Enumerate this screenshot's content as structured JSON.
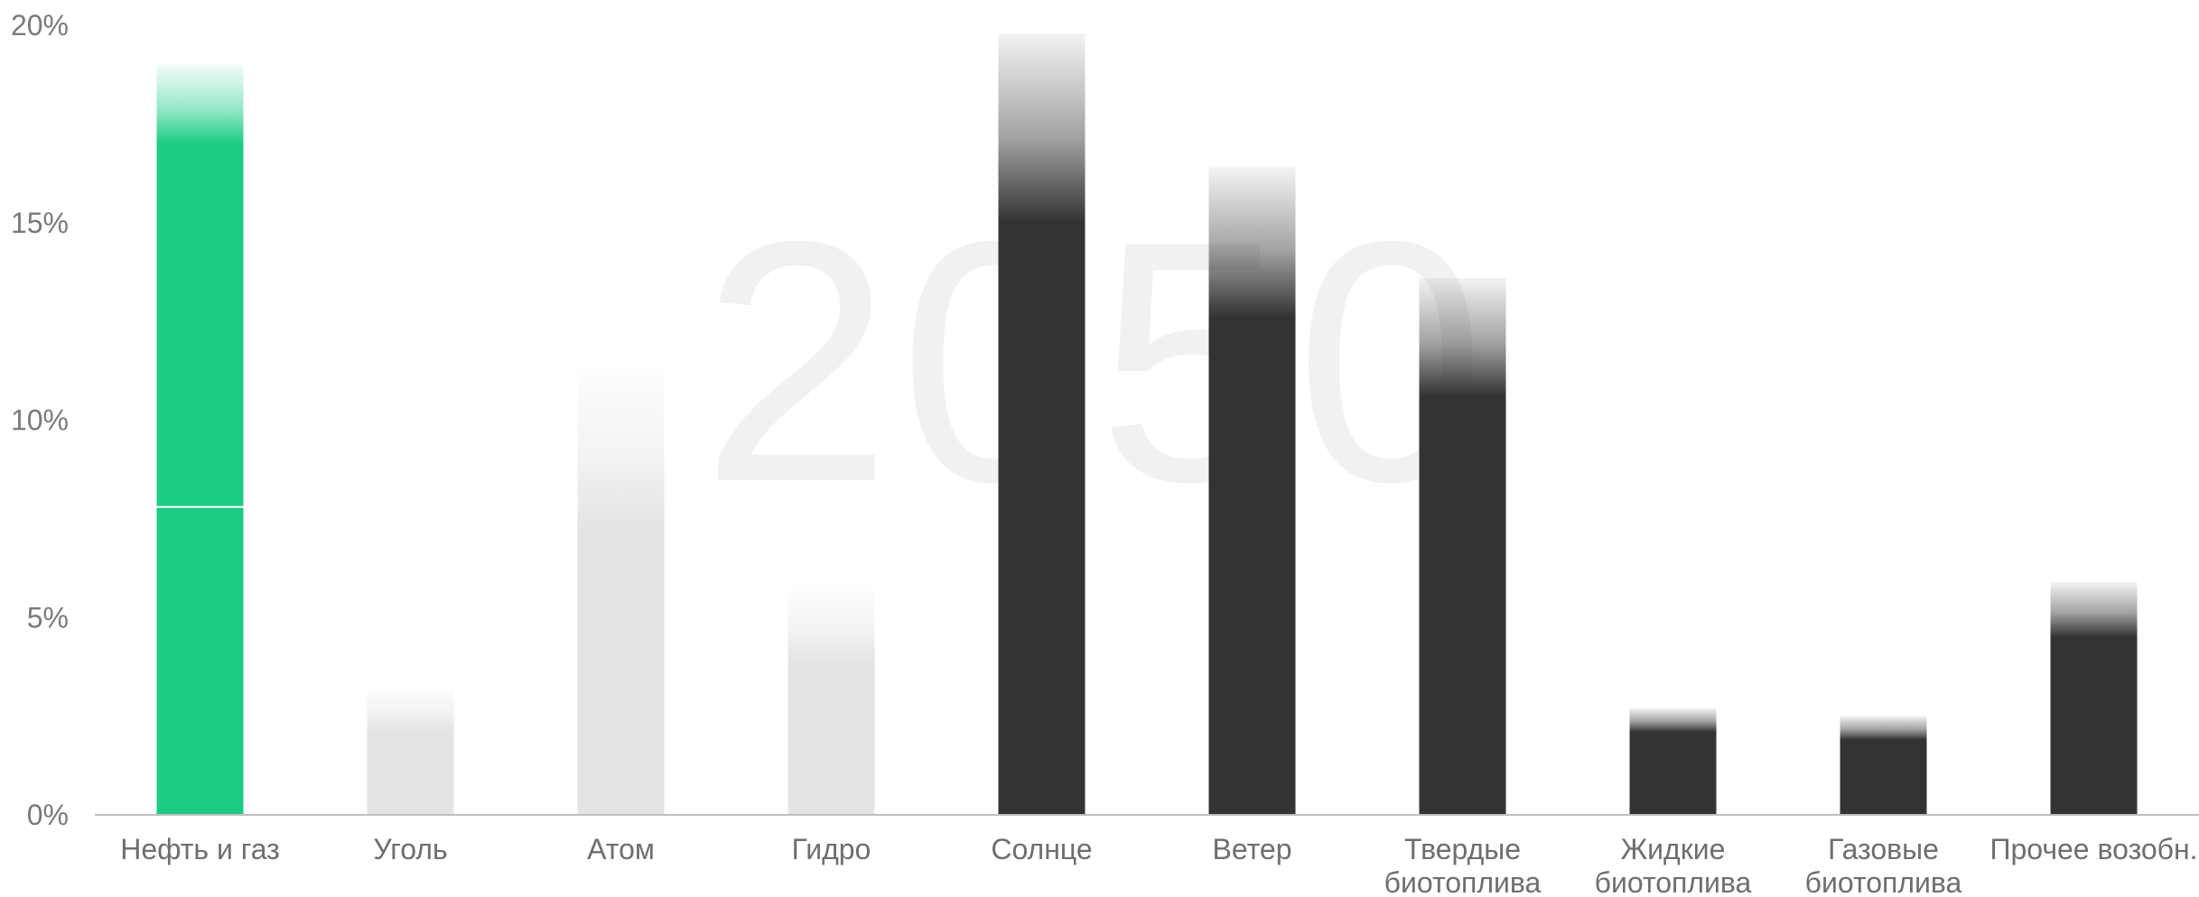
{
  "chart_data": {
    "type": "bar",
    "watermark": "2050",
    "categories": [
      [
        "Нефть и газ"
      ],
      [
        "Уголь"
      ],
      [
        "Атом"
      ],
      [
        "Гидро"
      ],
      [
        "Солнце"
      ],
      [
        "Ветер"
      ],
      [
        "Твердые",
        "биотоплива"
      ],
      [
        "Жидкие",
        "биотоплива"
      ],
      [
        "Газовые",
        "биотоплива"
      ],
      [
        "Прочее возобн."
      ]
    ],
    "values": [
      19.0,
      3.2,
      11.3,
      5.7,
      19.8,
      16.4,
      13.6,
      2.7,
      2.5,
      5.9
    ],
    "solid_values": [
      17.0,
      2.1,
      7.2,
      3.8,
      15.0,
      12.6,
      10.6,
      2.1,
      1.9,
      4.5
    ],
    "segment_marker_value": 7.8,
    "marker_category_index": 0,
    "bar_colors": [
      "#1ccc84",
      "#e3e3e3",
      "#e3e3e3",
      "#e3e3e3",
      "#333333",
      "#333333",
      "#333333",
      "#333333",
      "#333333",
      "#333333"
    ],
    "yticks": [
      0,
      5,
      10,
      15,
      20
    ],
    "ytick_labels": [
      "0%",
      "5%",
      "10%",
      "15%",
      "20%"
    ],
    "ylim": [
      0,
      20
    ],
    "axis_color": "#bfbfbf",
    "grid": false,
    "title": "",
    "xlabel": "",
    "ylabel": ""
  }
}
